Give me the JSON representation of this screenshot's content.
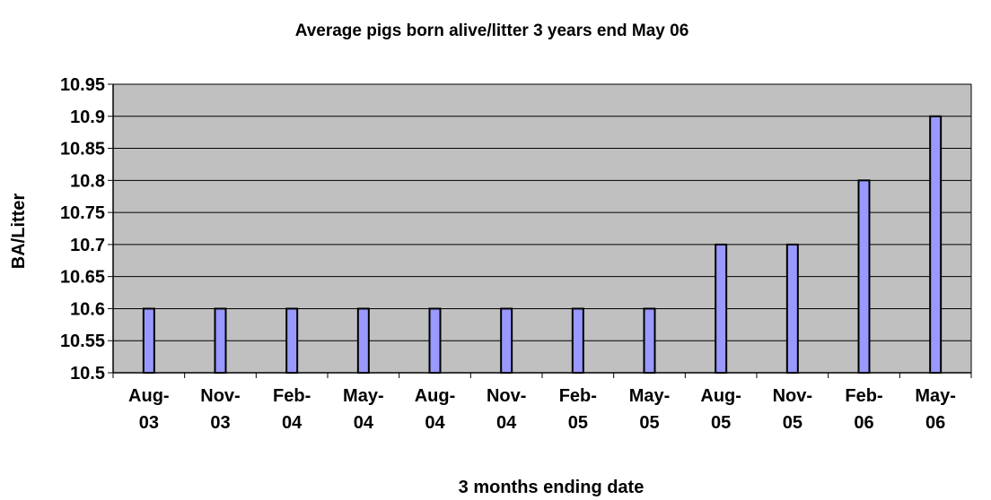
{
  "chart_data": {
    "type": "bar",
    "title": "Average pigs born alive/litter 3 years end May 06",
    "xlabel": "3 months ending date",
    "ylabel": "BA/Litter",
    "categories": [
      [
        "Aug-",
        "03"
      ],
      [
        "Nov-",
        "03"
      ],
      [
        "Feb-",
        "04"
      ],
      [
        "May-",
        "04"
      ],
      [
        "Aug-",
        "04"
      ],
      [
        "Nov-",
        "04"
      ],
      [
        "Feb-",
        "05"
      ],
      [
        "May-",
        "05"
      ],
      [
        "Aug-",
        "05"
      ],
      [
        "Nov-",
        "05"
      ],
      [
        "Feb-",
        "06"
      ],
      [
        "May-",
        "06"
      ]
    ],
    "values": [
      10.6,
      10.6,
      10.6,
      10.6,
      10.6,
      10.6,
      10.6,
      10.6,
      10.7,
      10.7,
      10.8,
      10.9
    ],
    "ylim": [
      10.5,
      10.95
    ],
    "yticks": [
      "10.5",
      "10.55",
      "10.6",
      "10.65",
      "10.7",
      "10.75",
      "10.8",
      "10.85",
      "10.9",
      "10.95"
    ],
    "grid": true,
    "legend": "none",
    "colors": {
      "plot_background": "#c0c0c0",
      "bar_fill": "#9999ff",
      "bar_stroke": "#000000",
      "gridline": "#000000"
    }
  }
}
